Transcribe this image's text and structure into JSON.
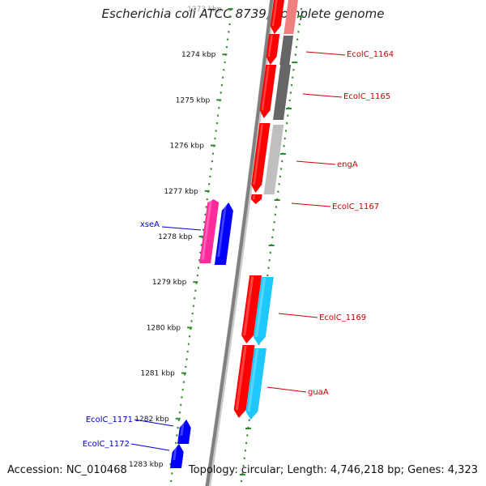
{
  "title": "Escherichia coli ATCC 8739, complete genome",
  "footer": {
    "accession": "Accession: NC_010468",
    "summary": "Topology: circular; Length: 4,746,218 bp; Genes: 4,323"
  },
  "colors": {
    "backbone": "#808080",
    "tick": "#2e8b2e",
    "label_forward": "#cc0000",
    "label_reverse": "#0000cc",
    "gene_red": "#ff0000",
    "gene_gray_dark": "#666666",
    "gene_gray_light": "#bfbfbf",
    "gene_cyan": "#1ec8ff",
    "gene_magenta": "#ff2b9c",
    "gene_blue": "#0000ff"
  },
  "ticks": [
    {
      "label": "1273 kbp"
    },
    {
      "label": "1274 kbp"
    },
    {
      "label": "1275 kbp"
    },
    {
      "label": "1276 kbp"
    },
    {
      "label": "1277 kbp"
    },
    {
      "label": "1278 kbp"
    },
    {
      "label": "1279 kbp"
    },
    {
      "label": "1280 kbp"
    },
    {
      "label": "1281 kbp"
    },
    {
      "label": "1282 kbp"
    },
    {
      "label": "1283 kbp"
    }
  ],
  "genes_forward": [
    {
      "label": "EcolC_1164"
    },
    {
      "label": "EcolC_1165"
    },
    {
      "label": "engA"
    },
    {
      "label": "EcolC_1167"
    },
    {
      "label": "EcolC_1169"
    },
    {
      "label": "guaA"
    }
  ],
  "genes_reverse": [
    {
      "label": "xseA"
    },
    {
      "label": "EcolC_1171"
    },
    {
      "label": "EcolC_1172"
    }
  ]
}
